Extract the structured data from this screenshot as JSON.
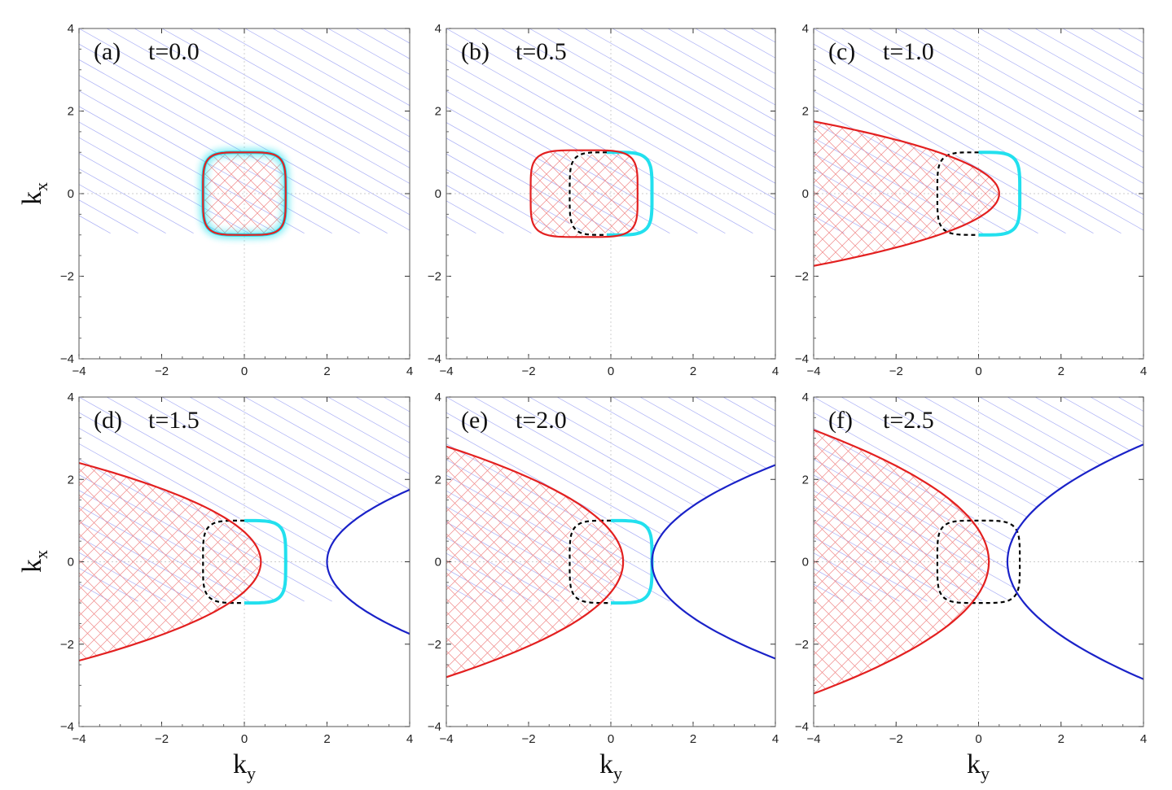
{
  "figure": {
    "xlabel_main": "k",
    "xlabel_sub": "y",
    "ylabel_main": "k",
    "ylabel_sub": "x"
  },
  "chart_data": [
    {
      "type": "line",
      "panel": "(a)",
      "title": "t=0.0",
      "xlim": [
        -4,
        4
      ],
      "ylim": [
        -4,
        4
      ],
      "xticks": [
        "−4",
        "−2",
        "0",
        "2",
        "4"
      ],
      "yticks": [
        "−4",
        "−2",
        "0",
        "2",
        "4"
      ],
      "curves": {
        "cyan_contour": {
          "y_right": 1.0,
          "y_left": -1.0,
          "halfwidth": 1.0
        },
        "black_dashed_contour": null,
        "red_contour": {
          "kind": "closed",
          "y_right": 1.0,
          "y_left": -1.0,
          "halfwidth": 1.0
        },
        "blue_contour": null
      },
      "colors": {
        "red": "#e32020",
        "cyan": "#22e0ee",
        "blue": "#1a22c8",
        "black": "#000000"
      }
    },
    {
      "type": "line",
      "panel": "(b)",
      "title": "t=0.5",
      "xlim": [
        -4,
        4
      ],
      "ylim": [
        -4,
        4
      ],
      "xticks": [
        "−4",
        "−2",
        "0",
        "2",
        "4"
      ],
      "yticks": [
        "−4",
        "−2",
        "0",
        "2",
        "4"
      ],
      "curves": {
        "cyan_contour": {
          "y_right": 1.0,
          "y_left": -1.0,
          "halfwidth": 1.0
        },
        "black_dashed_contour": {
          "y_left": -1.0,
          "ky_start": -0.1
        },
        "red_contour": {
          "kind": "closed",
          "y_right": 0.65,
          "y_left": -1.95,
          "halfwidth": 1.05
        },
        "blue_contour": null
      },
      "colors": {
        "red": "#e32020",
        "cyan": "#22e0ee",
        "blue": "#1a22c8",
        "black": "#000000"
      }
    },
    {
      "type": "line",
      "panel": "(c)",
      "title": "t=1.0",
      "xlim": [
        -4,
        4
      ],
      "ylim": [
        -4,
        4
      ],
      "xticks": [
        "−4",
        "−2",
        "0",
        "2",
        "4"
      ],
      "yticks": [
        "−4",
        "−2",
        "0",
        "2",
        "4"
      ],
      "curves": {
        "cyan_contour": {
          "y_right": 1.0,
          "y_left": -1.0,
          "halfwidth": 1.0
        },
        "black_dashed_contour": {
          "y_left": -1.0,
          "ky_start": 0.0
        },
        "red_contour": {
          "kind": "open-left",
          "vertex_ky": 0.5,
          "kx_at_left_edge": 1.75
        },
        "blue_contour": null
      },
      "colors": {
        "red": "#e32020",
        "cyan": "#22e0ee",
        "blue": "#1a22c8",
        "black": "#000000"
      }
    },
    {
      "type": "line",
      "panel": "(d)",
      "title": "t=1.5",
      "xlim": [
        -4,
        4
      ],
      "ylim": [
        -4,
        4
      ],
      "xticks": [
        "−4",
        "−2",
        "0",
        "2",
        "4"
      ],
      "yticks": [
        "−4",
        "−2",
        "0",
        "2",
        "4"
      ],
      "curves": {
        "cyan_contour": {
          "y_right": 1.0,
          "y_left": -1.0,
          "halfwidth": 1.0
        },
        "black_dashed_contour": {
          "y_left": -1.0,
          "ky_start": 0.0
        },
        "red_contour": {
          "kind": "open-left",
          "vertex_ky": 0.4,
          "kx_at_left_edge": 2.4
        },
        "blue_contour": {
          "kind": "open-right",
          "vertex_ky": 2.0,
          "kx_at_right_edge": 1.75
        }
      },
      "colors": {
        "red": "#e32020",
        "cyan": "#22e0ee",
        "blue": "#1a22c8",
        "black": "#000000"
      }
    },
    {
      "type": "line",
      "panel": "(e)",
      "title": "t=2.0",
      "xlim": [
        -4,
        4
      ],
      "ylim": [
        -4,
        4
      ],
      "xticks": [
        "−4",
        "−2",
        "0",
        "2",
        "4"
      ],
      "yticks": [
        "−4",
        "−2",
        "0",
        "2",
        "4"
      ],
      "curves": {
        "cyan_contour": {
          "y_right": 1.0,
          "y_left": -1.0,
          "halfwidth": 1.0
        },
        "black_dashed_contour": {
          "y_left": -1.0,
          "ky_start": 0.0
        },
        "red_contour": {
          "kind": "open-left",
          "vertex_ky": 0.3,
          "kx_at_left_edge": 2.8
        },
        "blue_contour": {
          "kind": "open-right",
          "vertex_ky": 1.0,
          "kx_at_right_edge": 2.35
        }
      },
      "colors": {
        "red": "#e32020",
        "cyan": "#22e0ee",
        "blue": "#1a22c8",
        "black": "#000000"
      }
    },
    {
      "type": "line",
      "panel": "(f)",
      "title": "t=2.5",
      "xlim": [
        -4,
        4
      ],
      "ylim": [
        -4,
        4
      ],
      "xticks": [
        "−4",
        "−2",
        "0",
        "2",
        "4"
      ],
      "yticks": [
        "−4",
        "−2",
        "0",
        "2",
        "4"
      ],
      "curves": {
        "cyan_contour": {
          "y_right": 1.0,
          "y_left": -1.0,
          "halfwidth": 1.0
        },
        "black_dashed_contour": {
          "y_left": -1.0,
          "ky_start": 0.0,
          "y_right": 1.0
        },
        "red_contour": {
          "kind": "open-left",
          "vertex_ky": 0.25,
          "kx_at_left_edge": 3.2
        },
        "blue_contour": {
          "kind": "open-right",
          "vertex_ky": 0.7,
          "kx_at_right_edge": 2.85
        }
      },
      "colors": {
        "red": "#e32020",
        "cyan": "#22e0ee",
        "blue": "#1a22c8",
        "black": "#000000"
      }
    }
  ]
}
